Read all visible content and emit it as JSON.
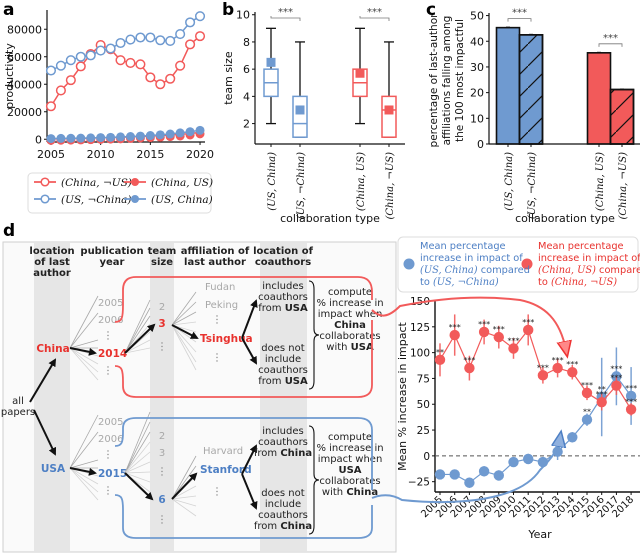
{
  "colors": {
    "red": "#f25a5a",
    "blue": "#6f9ad0",
    "red_text": "#e8322e",
    "blue_text": "#4d7fc4",
    "gray_text": "#9a9a9a",
    "column_bg": "#e6e6e6"
  },
  "chart_data": [
    {
      "panel": "a",
      "type": "line",
      "ylabel": "productivity",
      "xlabel": "",
      "x": [
        2005,
        2006,
        2007,
        2008,
        2009,
        2010,
        2011,
        2012,
        2013,
        2014,
        2015,
        2016,
        2017,
        2018,
        2019,
        2020
      ],
      "xticks": [
        2005,
        2010,
        2015,
        2020
      ],
      "yticks": [
        0,
        20000,
        40000,
        60000,
        80000
      ],
      "ytick_labels": [
        "0",
        "20000",
        "40000",
        "60000",
        "80000"
      ],
      "xlim": [
        2004.6,
        2020.5
      ],
      "ylim": [
        -2000,
        94000
      ],
      "series": [
        {
          "name": "(China, ¬US)",
          "color": "red",
          "marker": "open",
          "values": [
            24000,
            35500,
            43000,
            53000,
            62000,
            68500,
            65500,
            57500,
            55500,
            54500,
            45000,
            40000,
            44000,
            53500,
            69000,
            75000
          ]
        },
        {
          "name": "(US, ¬China)",
          "color": "blue",
          "marker": "open",
          "values": [
            50000,
            53500,
            57500,
            60000,
            61000,
            64500,
            66000,
            70000,
            72500,
            74000,
            74000,
            72000,
            71500,
            76500,
            85000,
            89500
          ]
        },
        {
          "name": "(China, US)",
          "color": "red",
          "marker": "filled",
          "values": [
            300,
            400,
            500,
            600,
            800,
            1000,
            1200,
            1400,
            1700,
            2000,
            2300,
            2600,
            3000,
            3500,
            4200,
            5000
          ]
        },
        {
          "name": "(US, China)",
          "color": "blue",
          "marker": "filled",
          "values": [
            500,
            600,
            700,
            800,
            1000,
            1200,
            1400,
            1700,
            2000,
            2300,
            2700,
            3200,
            3800,
            4600,
            5500,
            6500
          ]
        }
      ],
      "legend": {
        "placement": "bottom",
        "entries": [
          "(China, ¬US)",
          "(China, US)",
          "(US, ¬China)",
          "(US, China)"
        ]
      }
    },
    {
      "panel": "b",
      "type": "box",
      "ylabel": "team size",
      "xlabel": "collaboration type",
      "ylim": [
        0.5,
        10.2
      ],
      "yticks": [
        2,
        4,
        6,
        8,
        10
      ],
      "categories": [
        "(US, China)",
        "(US, ¬China)",
        "(China, US)",
        "(China, ¬US)"
      ],
      "boxes": [
        {
          "color": "blue",
          "whisker_low": 2,
          "q1": 4,
          "median": 5,
          "q3": 6,
          "whisker_high": 9,
          "mean": 6.5
        },
        {
          "color": "blue",
          "whisker_low": 1,
          "q1": 1,
          "median": 2,
          "q3": 4,
          "whisker_high": 8,
          "mean": 3.0
        },
        {
          "color": "red",
          "whisker_low": 2,
          "q1": 4,
          "median": 5,
          "q3": 6,
          "whisker_high": 9,
          "mean": 5.7
        },
        {
          "color": "red",
          "whisker_low": 1,
          "q1": 1,
          "median": 3,
          "q3": 4,
          "whisker_high": 8,
          "mean": 3.0
        }
      ],
      "annotations": [
        {
          "between": [
            0,
            1
          ],
          "text": "***"
        },
        {
          "between": [
            2,
            3
          ],
          "text": "***"
        }
      ]
    },
    {
      "panel": "c",
      "type": "bar",
      "ylabel": "percentage of last-author affiliations falling among the 100 most impactful",
      "ylabel_lines": [
        "percentage of last-author",
        "affiliations  falling among",
        "the 100 most impactful"
      ],
      "xlabel": "collaboration type",
      "ylim": [
        0,
        51
      ],
      "yticks": [
        0,
        10,
        20,
        30,
        40,
        50
      ],
      "categories": [
        "(US, China)",
        "(US, ¬China)",
        "(China, US)",
        "(China, ¬US)"
      ],
      "values": [
        45.3,
        42.5,
        35.5,
        21.2
      ],
      "colors": [
        "blue",
        "blue",
        "red",
        "red"
      ],
      "hatched": [
        false,
        true,
        false,
        true
      ],
      "annotations": [
        {
          "between": [
            0,
            1
          ],
          "text": "***"
        },
        {
          "between": [
            2,
            3
          ],
          "text": "***"
        }
      ]
    },
    {
      "panel": "e",
      "type": "line",
      "ylabel": "Mean % increase in impact",
      "xlabel": "Year",
      "x": [
        2005,
        2006,
        2007,
        2008,
        2009,
        2010,
        2011,
        2012,
        2013,
        2014,
        2015,
        2016,
        2017,
        2018
      ],
      "ylim": [
        -35,
        150
      ],
      "yticks": [
        -25,
        0,
        25,
        50,
        75,
        100,
        125,
        150
      ],
      "ytick_labels": [
        "−25",
        "0",
        "25",
        "50",
        "75",
        "100",
        "125",
        "150"
      ],
      "zero_line": "dashed",
      "series": [
        {
          "name": "(China, US) vs (China, ¬US)",
          "color": "red",
          "values": [
            93,
            117,
            85,
            120,
            115,
            104,
            122,
            78,
            85,
            81,
            61,
            52,
            68,
            45
          ],
          "err": [
            16,
            20,
            12,
            12,
            11,
            10,
            15,
            8,
            9,
            7,
            7,
            8,
            9,
            6
          ],
          "sig": [
            "**",
            "***",
            "***",
            "***",
            "***",
            "***",
            "***",
            "***",
            "***",
            "***",
            "***",
            "***",
            "***",
            "***"
          ]
        },
        {
          "name": "(US, China) vs (US, ¬China)",
          "color": "blue",
          "values": [
            -18,
            -18,
            -26,
            -15,
            -19,
            -6,
            -3,
            -6,
            4,
            18,
            35,
            57,
            77,
            58
          ],
          "err": [
            4,
            4,
            5,
            5,
            5,
            4,
            5,
            4,
            8,
            5,
            6,
            38,
            28,
            28
          ],
          "sig": [
            "",
            "",
            "",
            "",
            "",
            "",
            "",
            "",
            "",
            "",
            "**",
            "**",
            "***",
            "***"
          ]
        }
      ]
    }
  ],
  "panel_a": {
    "letter": "a"
  },
  "panel_b": {
    "letter": "b"
  },
  "panel_c": {
    "letter": "c"
  },
  "panel_d": {
    "letter": "d",
    "headers": {
      "location": [
        "location",
        "of last",
        "author"
      ],
      "year": [
        "publication",
        "year"
      ],
      "team": [
        "team",
        "size"
      ],
      "affiliation": [
        "affiliation of",
        "last author"
      ],
      "coauthors": [
        "location of",
        "coauthors"
      ]
    },
    "root_label": [
      "all",
      "papers"
    ],
    "china": {
      "label": "China",
      "years": [
        "2005",
        "2006",
        "2014"
      ],
      "team_sizes": [
        "2",
        "3"
      ],
      "affiliations": [
        "Fudan",
        "Peking",
        "Tsinghua"
      ],
      "includes": [
        "includes",
        "coauthors",
        "from ",
        "USA"
      ],
      "excludes": [
        "does not",
        "include",
        "coauthors",
        "from ",
        "USA"
      ],
      "compute": [
        "compute",
        "% increase in",
        "impact when",
        "China",
        "collaborates",
        "with ",
        "USA"
      ]
    },
    "usa": {
      "label": "USA",
      "years": [
        "2005",
        "2006",
        "2015"
      ],
      "team_sizes": [
        "2",
        "3",
        "6"
      ],
      "affiliations": [
        "Harvard",
        "Stanford"
      ],
      "includes": [
        "includes",
        "coauthors",
        "from ",
        "China"
      ],
      "excludes": [
        "does not",
        "include",
        "coauthors",
        "from ",
        "China"
      ],
      "compute": [
        "compute",
        "% increase in",
        "impact when",
        "USA",
        "collaborates",
        "with ",
        "China"
      ]
    }
  },
  "panel_e_legend": {
    "blue": [
      "Mean percentage",
      "increase in impact of",
      "(US, China)",
      " compared",
      "to ",
      "(US, ¬China)"
    ],
    "red": [
      "Mean percentage",
      "increase in impact of",
      "(China, US)",
      " compared",
      "to ",
      "(China, ¬US)"
    ]
  }
}
